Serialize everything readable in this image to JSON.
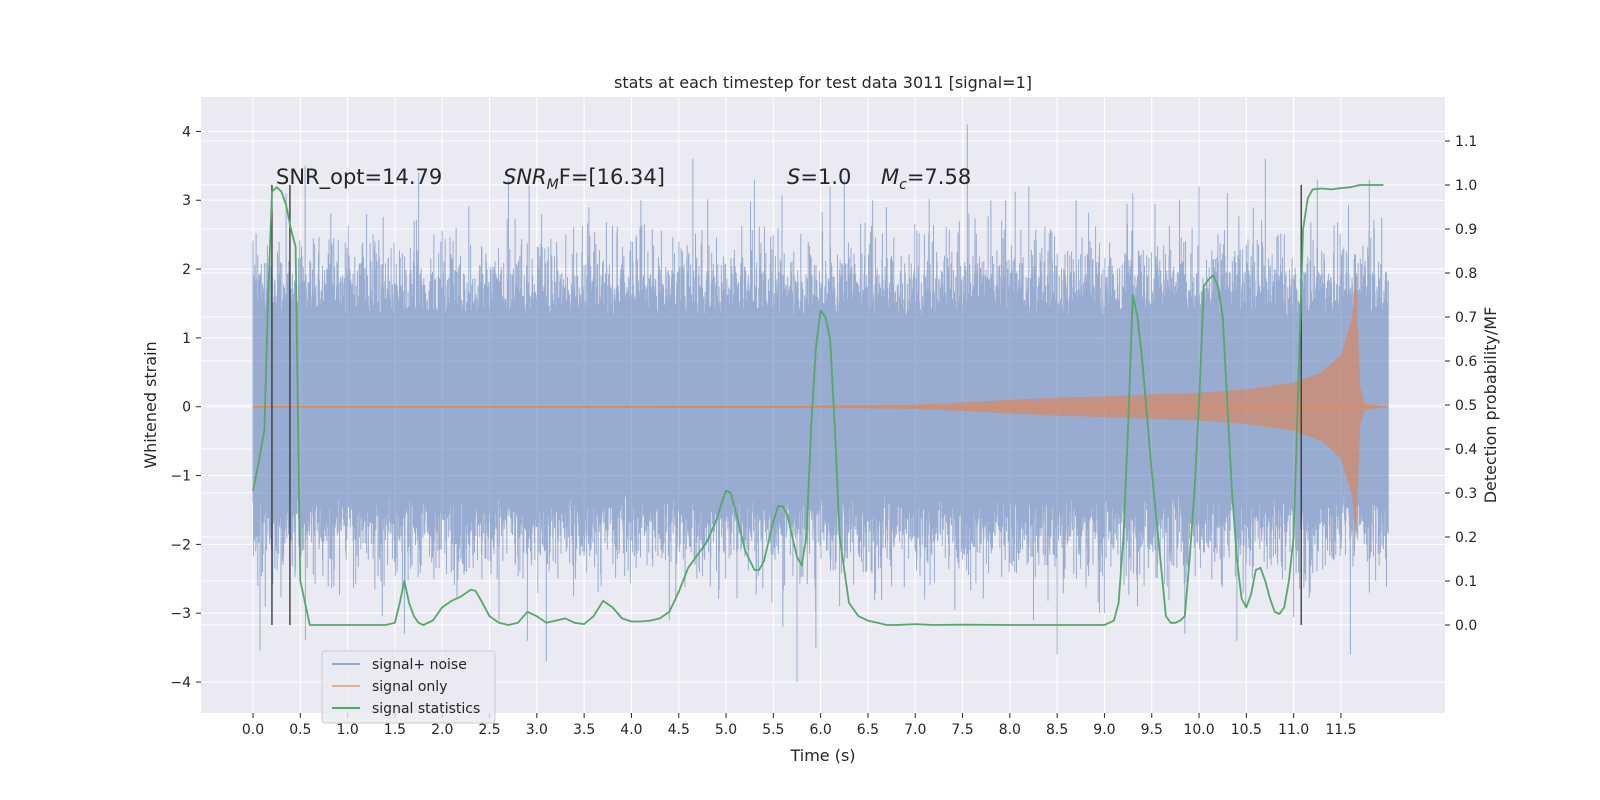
{
  "chart_data": {
    "type": "line",
    "title": "stats at each timestep for test data 3011 [signal=1]",
    "xlabel": "Time (s)",
    "ylabel": "Whitened strain",
    "ylabel_right": "Detection probability/MF",
    "xlim": [
      -0.55,
      12.6
    ],
    "ylim": [
      -4.45,
      4.5
    ],
    "ylim_right": [
      -0.2,
      1.2
    ],
    "x_ticks": [
      "0.0",
      "0.5",
      "1.0",
      "1.5",
      "2.0",
      "2.5",
      "3.0",
      "3.5",
      "4.0",
      "4.5",
      "5.0",
      "5.5",
      "6.0",
      "6.5",
      "7.0",
      "7.5",
      "8.0",
      "8.5",
      "9.0",
      "9.5",
      "10.0",
      "10.5",
      "11.0",
      "11.5"
    ],
    "y_ticks": [
      "−4",
      "−3",
      "−2",
      "−1",
      "0",
      "1",
      "2",
      "3",
      "4"
    ],
    "y_ticks_right": [
      "0.0",
      "0.1",
      "0.2",
      "0.3",
      "0.4",
      "0.5",
      "0.6",
      "0.7",
      "0.8",
      "0.9",
      "1.0",
      "1.1"
    ],
    "grid": true,
    "legend_position": "lower-left",
    "annotations": [
      "SNR_opt=14.79",
      "SNR",
      "M",
      "F=[16.34]",
      "S",
      "=1.0",
      "M",
      "c",
      "=7.58"
    ],
    "vertical_markers": [
      0.2,
      0.39,
      11.08
    ],
    "series": [
      {
        "name": "signal+ noise",
        "color": "#4c72b0",
        "description_band": "whitened strain noise, typical range",
        "envelope_low": -2.5,
        "envelope_high": 2.5,
        "peaks": [
          [
            0.05,
            2.2
          ],
          [
            0.35,
            3.1
          ],
          [
            0.55,
            3.5
          ],
          [
            1.2,
            2.8
          ],
          [
            1.75,
            3.4
          ],
          [
            2.7,
            3.3
          ],
          [
            3.05,
            2.8
          ],
          [
            3.55,
            2.9
          ],
          [
            4.1,
            3.0
          ],
          [
            4.65,
            3.6
          ],
          [
            5.3,
            3.3
          ],
          [
            5.55,
            2.6
          ],
          [
            6.1,
            3.2
          ],
          [
            6.25,
            3.3
          ],
          [
            6.55,
            3.0
          ],
          [
            7.55,
            4.1
          ],
          [
            7.8,
            3.0
          ],
          [
            8.2,
            3.2
          ],
          [
            8.7,
            3.0
          ],
          [
            9.3,
            3.1
          ],
          [
            10.0,
            3.2
          ],
          [
            10.3,
            3.1
          ],
          [
            10.7,
            3.6
          ],
          [
            11.25,
            3.3
          ],
          [
            11.8,
            3.3
          ]
        ],
        "troughs": [
          [
            0.1,
            -2.4
          ],
          [
            1.6,
            -3.3
          ],
          [
            2.6,
            -3.1
          ],
          [
            2.9,
            -3.4
          ],
          [
            3.1,
            -3.7
          ],
          [
            4.4,
            -3.1
          ],
          [
            5.6,
            -3.2
          ],
          [
            5.95,
            -3.5
          ],
          [
            5.75,
            -4.0
          ],
          [
            6.2,
            -2.9
          ],
          [
            7.1,
            -2.8
          ],
          [
            8.25,
            -3.1
          ],
          [
            8.5,
            -3.6
          ],
          [
            9.0,
            -3.0
          ],
          [
            9.35,
            -2.9
          ],
          [
            9.85,
            -3.3
          ],
          [
            10.4,
            -3.4
          ],
          [
            11.0,
            -3.0
          ],
          [
            11.6,
            -3.6
          ],
          [
            11.8,
            -2.7
          ]
        ]
      },
      {
        "name": "signal only",
        "color": "#dd8452",
        "amplitude_profile": [
          [
            0.0,
            0.01
          ],
          [
            6.0,
            0.02
          ],
          [
            7.0,
            0.03
          ],
          [
            7.5,
            0.06
          ],
          [
            8.0,
            0.1
          ],
          [
            8.5,
            0.13
          ],
          [
            9.0,
            0.15
          ],
          [
            9.5,
            0.18
          ],
          [
            10.0,
            0.2
          ],
          [
            10.5,
            0.25
          ],
          [
            11.0,
            0.35
          ],
          [
            11.3,
            0.5
          ],
          [
            11.5,
            0.75
          ],
          [
            11.62,
            1.3
          ],
          [
            11.66,
            1.9
          ],
          [
            11.7,
            0.3
          ],
          [
            11.75,
            0.05
          ],
          [
            12.0,
            0.0
          ]
        ]
      },
      {
        "name": "signal statistics",
        "color": "#55a868",
        "axis": "right",
        "x": [
          0.0,
          0.06,
          0.12,
          0.16,
          0.2,
          0.25,
          0.3,
          0.35,
          0.4,
          0.45,
          0.5,
          0.55,
          0.6,
          0.7,
          0.8,
          1.0,
          1.2,
          1.4,
          1.5,
          1.55,
          1.6,
          1.65,
          1.7,
          1.75,
          1.8,
          1.9,
          2.0,
          2.1,
          2.2,
          2.3,
          2.35,
          2.4,
          2.5,
          2.6,
          2.7,
          2.8,
          2.9,
          3.0,
          3.1,
          3.2,
          3.3,
          3.4,
          3.5,
          3.6,
          3.7,
          3.8,
          3.9,
          4.0,
          4.1,
          4.2,
          4.3,
          4.4,
          4.5,
          4.6,
          4.7,
          4.8,
          4.9,
          4.95,
          5.0,
          5.05,
          5.1,
          5.2,
          5.3,
          5.35,
          5.4,
          5.5,
          5.55,
          5.6,
          5.65,
          5.7,
          5.75,
          5.8,
          5.85,
          5.9,
          5.95,
          6.0,
          6.05,
          6.1,
          6.15,
          6.2,
          6.3,
          6.4,
          6.5,
          6.6,
          6.7,
          6.8,
          7.0,
          7.2,
          7.5,
          8.0,
          8.5,
          9.0,
          9.1,
          9.15,
          9.2,
          9.25,
          9.3,
          9.35,
          9.4,
          9.5,
          9.6,
          9.65,
          9.7,
          9.75,
          9.8,
          9.85,
          9.9,
          9.95,
          10.0,
          10.05,
          10.1,
          10.15,
          10.2,
          10.25,
          10.3,
          10.35,
          10.4,
          10.45,
          10.5,
          10.55,
          10.6,
          10.65,
          10.7,
          10.75,
          10.8,
          10.85,
          10.9,
          10.95,
          11.0,
          11.05,
          11.1,
          11.15,
          11.2,
          11.3,
          11.4,
          11.5,
          11.6,
          11.7,
          11.8,
          11.9,
          11.95
        ],
        "values": [
          0.305,
          0.37,
          0.445,
          0.75,
          0.985,
          0.995,
          0.985,
          0.955,
          0.9,
          0.86,
          0.1,
          0.05,
          0.0,
          0.0,
          0.0,
          0.0,
          0.0,
          0.0,
          0.005,
          0.05,
          0.1,
          0.05,
          0.02,
          0.005,
          0.0,
          0.01,
          0.04,
          0.055,
          0.065,
          0.08,
          0.078,
          0.06,
          0.02,
          0.005,
          0.0,
          0.005,
          0.03,
          0.02,
          0.005,
          0.01,
          0.015,
          0.005,
          0.002,
          0.02,
          0.055,
          0.04,
          0.015,
          0.008,
          0.008,
          0.01,
          0.015,
          0.03,
          0.075,
          0.13,
          0.16,
          0.19,
          0.24,
          0.275,
          0.305,
          0.3,
          0.26,
          0.17,
          0.125,
          0.125,
          0.145,
          0.235,
          0.27,
          0.27,
          0.25,
          0.2,
          0.155,
          0.135,
          0.2,
          0.45,
          0.63,
          0.715,
          0.7,
          0.65,
          0.45,
          0.2,
          0.05,
          0.02,
          0.01,
          0.005,
          0.0,
          0.0,
          0.002,
          0.0,
          0.001,
          0.0,
          0.0,
          0.0,
          0.01,
          0.05,
          0.2,
          0.45,
          0.75,
          0.7,
          0.6,
          0.35,
          0.13,
          0.02,
          0.005,
          0.005,
          0.01,
          0.02,
          0.15,
          0.3,
          0.5,
          0.77,
          0.785,
          0.795,
          0.77,
          0.7,
          0.5,
          0.3,
          0.15,
          0.06,
          0.04,
          0.07,
          0.125,
          0.13,
          0.1,
          0.06,
          0.03,
          0.025,
          0.04,
          0.1,
          0.2,
          0.55,
          0.9,
          0.97,
          0.99,
          0.992,
          0.99,
          0.993,
          0.995,
          1.0,
          1.0,
          1.0,
          1.0
        ]
      }
    ]
  },
  "legend": {
    "items": [
      "signal+ noise",
      "signal only",
      "signal statistics"
    ]
  },
  "annotation_text": {
    "snr_opt": "SNR_opt=14.79",
    "snr_mf_main": "SNR",
    "snr_mf_sub": "M",
    "snr_mf_rest": "F=[16.34]",
    "s_symbol": "S",
    "s_value": "=1.0",
    "mc_symbol": "M",
    "mc_sub": "c",
    "mc_value": "=7.58"
  }
}
